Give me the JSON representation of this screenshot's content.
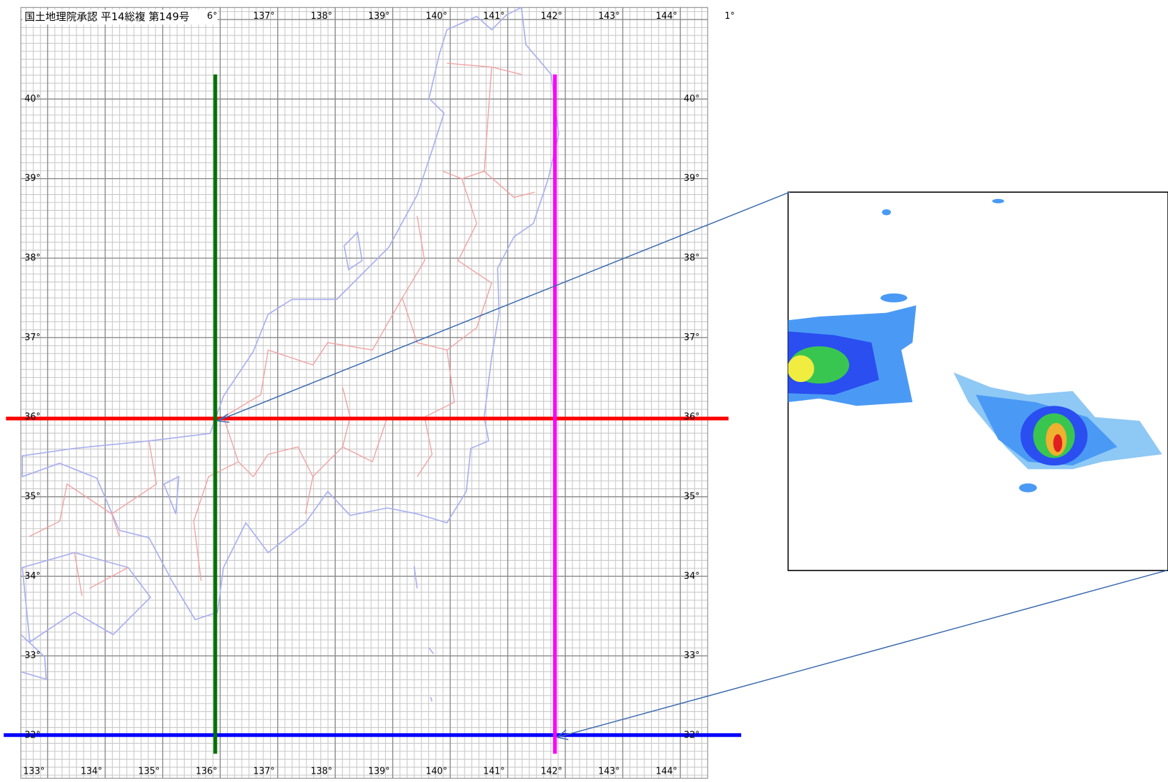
{
  "header": "国土地理院承認 平14総複 第149号",
  "top_labels": [
    "6°",
    "137°",
    "138°",
    "139°",
    "140°",
    "141°",
    "142°",
    "143°",
    "144°",
    "1°"
  ],
  "bottom_labels": [
    "133°",
    "134°",
    "135°",
    "136°",
    "137°",
    "138°",
    "139°",
    "140°",
    "141°",
    "142°",
    "143°",
    "144°"
  ],
  "left_labels": [
    "40°",
    "39°",
    "38°",
    "37°",
    "36°",
    "35°",
    "34°",
    "33°",
    "32°"
  ],
  "right_labels": [
    "40°",
    "39°",
    "38°",
    "37°",
    "36°",
    "35°",
    "34°",
    "33°",
    "32°"
  ]
}
